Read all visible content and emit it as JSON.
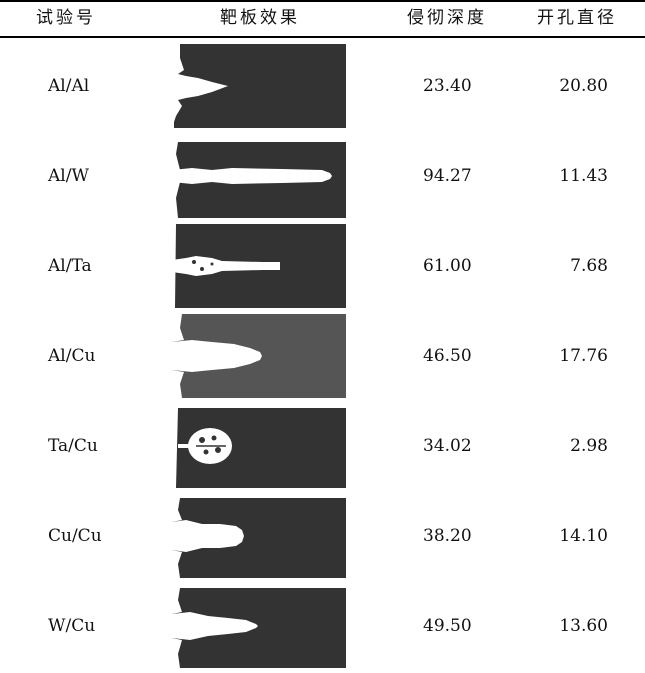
{
  "headers": {
    "trial": "试验号",
    "effect": "靶板效果",
    "depth": "侵彻深度",
    "diameter": "开孔直径"
  },
  "rows": [
    {
      "trial": "Al/Al",
      "depth": "23.40",
      "diameter": "20.80",
      "image": "penetration-cross-section-al-al"
    },
    {
      "trial": "Al/W",
      "depth": "94.27",
      "diameter": "11.43",
      "image": "penetration-cross-section-al-w"
    },
    {
      "trial": "Al/Ta",
      "depth": "61.00",
      "diameter": "7.68",
      "image": "penetration-cross-section-al-ta"
    },
    {
      "trial": "Al/Cu",
      "depth": "46.50",
      "diameter": "17.76",
      "image": "penetration-cross-section-al-cu"
    },
    {
      "trial": "Ta/Cu",
      "depth": "34.02",
      "diameter": "2.98",
      "image": "penetration-cross-section-ta-cu"
    },
    {
      "trial": "Cu/Cu",
      "depth": "38.20",
      "diameter": "14.10",
      "image": "penetration-cross-section-cu-cu"
    },
    {
      "trial": "W/Cu",
      "depth": "49.50",
      "diameter": "13.60",
      "image": "penetration-cross-section-w-cu"
    }
  ],
  "colors": {
    "plate_dark": "#333333",
    "plate_mid": "#555555",
    "cavity": "#ffffff",
    "rule": "#000000"
  }
}
